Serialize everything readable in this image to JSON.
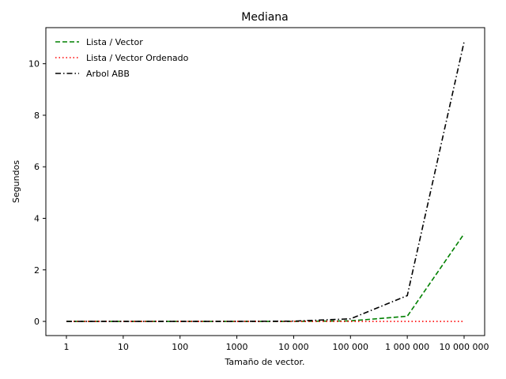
{
  "chart_data": {
    "type": "line",
    "title": "Mediana",
    "xlabel": "Tamaño de vector.",
    "ylabel": "Segundos",
    "x": [
      1,
      10,
      100,
      1000,
      10000,
      100000,
      1000000,
      10000000
    ],
    "x_tick_labels": [
      "1",
      "10",
      "100",
      "1000",
      "10 000",
      "100 000",
      "1 000 000",
      "10 000 000"
    ],
    "x_scale": "log",
    "y_ticks": [
      0,
      2,
      4,
      6,
      8,
      10
    ],
    "y_tick_labels": [
      "0",
      "2",
      "4",
      "6",
      "8",
      "10"
    ],
    "ylim": [
      -0.55,
      11.4
    ],
    "grid": false,
    "legend_position": "top-left",
    "series": [
      {
        "name": "Lista / Vector",
        "color": "#008000",
        "dash": "dashed",
        "values": [
          0,
          0,
          0,
          0,
          0,
          0.02,
          0.2,
          3.4
        ]
      },
      {
        "name": "Lista / Vector Ordenado",
        "color": "#ff0000",
        "dash": "dotted",
        "values": [
          0,
          0,
          0,
          0,
          0,
          0,
          0,
          0
        ]
      },
      {
        "name": "Arbol ABB",
        "color": "#000000",
        "dash": "dashdot",
        "values": [
          0,
          0,
          0,
          0,
          0.01,
          0.1,
          1.0,
          10.85
        ]
      }
    ]
  }
}
